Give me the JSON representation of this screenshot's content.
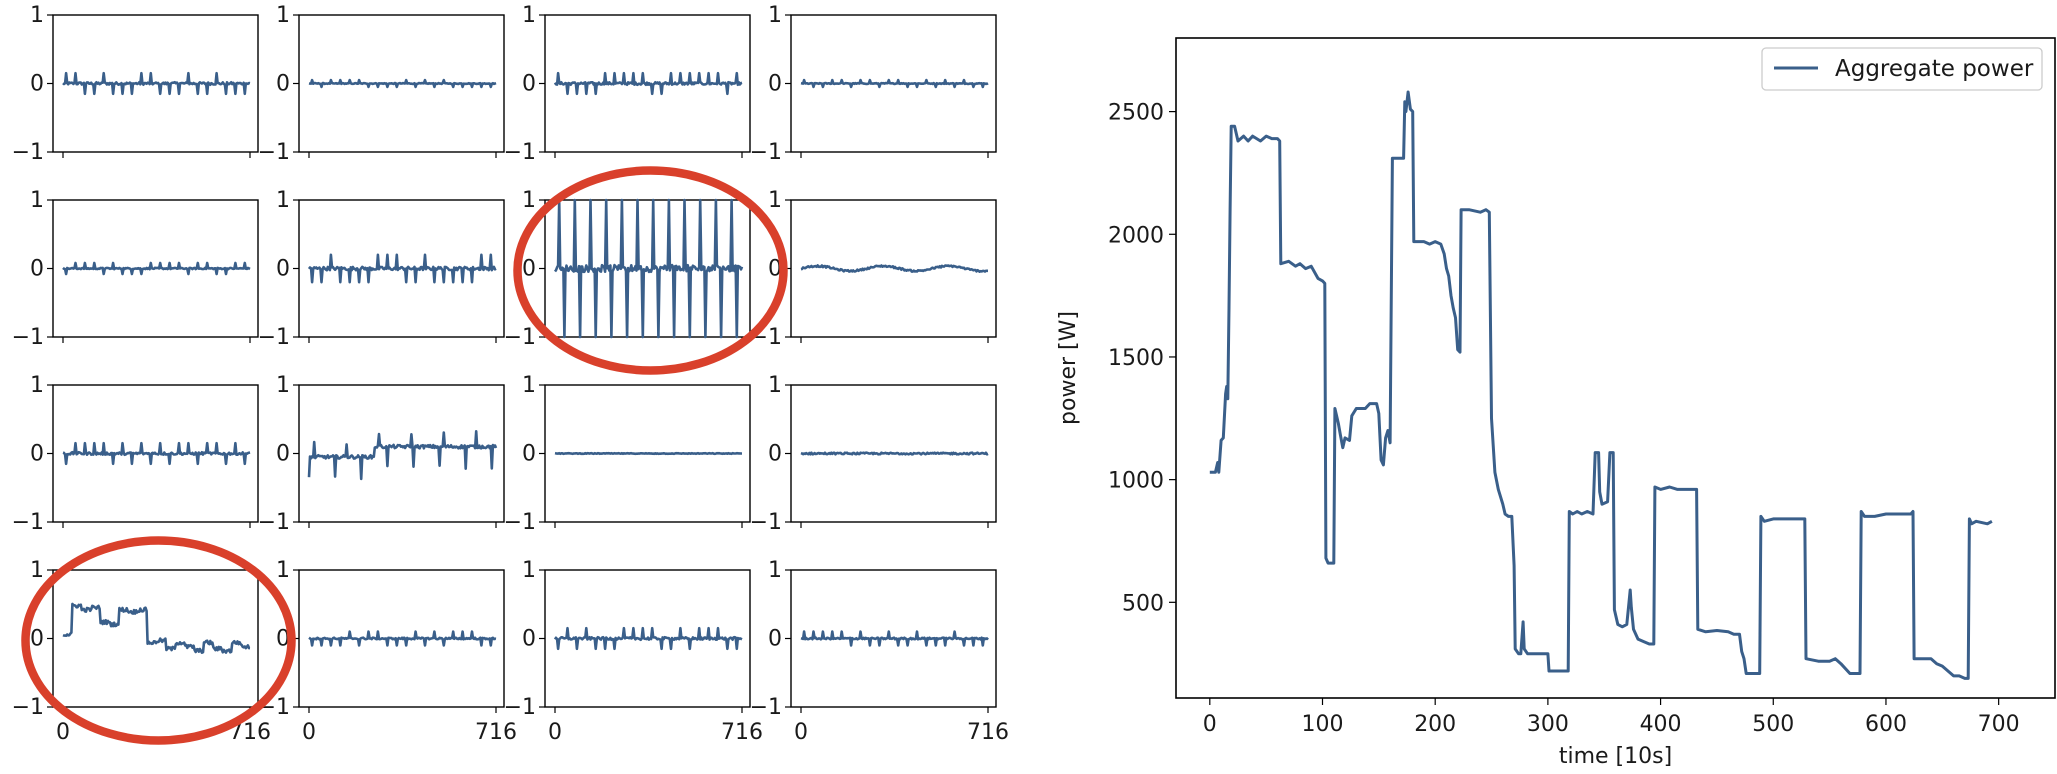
{
  "chart_data": [
    {
      "type": "line",
      "layout": "4x4 grid of small multiples",
      "ylim": [
        -1,
        1
      ],
      "xlim": [
        0,
        716
      ],
      "yticks": [
        "1",
        "0",
        "−1"
      ],
      "xticks": [
        "0",
        "716"
      ],
      "line_color": "#3a5f8a",
      "highlight_color": "#d9402b",
      "highlighted_panels": [
        [
          1,
          2
        ],
        [
          3,
          0
        ]
      ],
      "panels": [
        [
          {
            "kind": "spiky",
            "amp": 0.15
          },
          {
            "kind": "spiky",
            "amp": 0.05
          },
          {
            "kind": "spiky",
            "amp": 0.15
          },
          {
            "kind": "spiky",
            "amp": 0.05
          }
        ],
        [
          {
            "kind": "spiky",
            "amp": 0.08
          },
          {
            "kind": "spiky",
            "amp": 0.2
          },
          {
            "kind": "spiky-large",
            "amp": 1.0
          },
          {
            "kind": "wavy",
            "amp": 0.12
          }
        ],
        [
          {
            "kind": "spiky",
            "amp": 0.15
          },
          {
            "kind": "step-positive",
            "amp": 0.25
          },
          {
            "kind": "flat",
            "amp": 0.02
          },
          {
            "kind": "flat",
            "amp": 0.05
          }
        ],
        [
          {
            "kind": "step-trend",
            "amp": 0.6
          },
          {
            "kind": "spiky",
            "amp": 0.1
          },
          {
            "kind": "spiky",
            "amp": 0.15
          },
          {
            "kind": "spiky",
            "amp": 0.1
          }
        ]
      ]
    },
    {
      "type": "line",
      "xlabel": "time [10s]",
      "ylabel": "power [W]",
      "xlim": [
        -30,
        750
      ],
      "ylim": [
        110,
        2800
      ],
      "xticks": [
        0,
        100,
        200,
        300,
        400,
        500,
        600,
        700
      ],
      "yticks": [
        500,
        1000,
        1500,
        2000,
        2500
      ],
      "legend_position": "top-right",
      "series": [
        {
          "name": "Aggregate power",
          "color": "#3a5f8a",
          "points": [
            [
              0,
              1030
            ],
            [
              5,
              1030
            ],
            [
              7,
              1070
            ],
            [
              8,
              1030
            ],
            [
              10,
              1160
            ],
            [
              12,
              1170
            ],
            [
              14,
              1350
            ],
            [
              15,
              1380
            ],
            [
              16,
              1330
            ],
            [
              17,
              1700
            ],
            [
              18,
              2100
            ],
            [
              19,
              2440
            ],
            [
              22,
              2440
            ],
            [
              25,
              2380
            ],
            [
              30,
              2400
            ],
            [
              34,
              2380
            ],
            [
              38,
              2400
            ],
            [
              45,
              2380
            ],
            [
              50,
              2400
            ],
            [
              55,
              2390
            ],
            [
              60,
              2390
            ],
            [
              62,
              2380
            ],
            [
              63,
              1880
            ],
            [
              70,
              1890
            ],
            [
              76,
              1870
            ],
            [
              80,
              1880
            ],
            [
              85,
              1860
            ],
            [
              90,
              1870
            ],
            [
              96,
              1820
            ],
            [
              100,
              1810
            ],
            [
              102,
              1800
            ],
            [
              103,
              680
            ],
            [
              105,
              660
            ],
            [
              110,
              660
            ],
            [
              111,
              1290
            ],
            [
              114,
              1230
            ],
            [
              116,
              1180
            ],
            [
              118,
              1130
            ],
            [
              120,
              1170
            ],
            [
              124,
              1160
            ],
            [
              126,
              1260
            ],
            [
              130,
              1290
            ],
            [
              138,
              1290
            ],
            [
              142,
              1310
            ],
            [
              148,
              1310
            ],
            [
              150,
              1270
            ],
            [
              152,
              1080
            ],
            [
              154,
              1060
            ],
            [
              156,
              1170
            ],
            [
              158,
              1200
            ],
            [
              160,
              1150
            ],
            [
              162,
              2310
            ],
            [
              172,
              2310
            ],
            [
              173,
              2540
            ],
            [
              174,
              2500
            ],
            [
              176,
              2580
            ],
            [
              178,
              2510
            ],
            [
              180,
              2500
            ],
            [
              181,
              1970
            ],
            [
              190,
              1970
            ],
            [
              195,
              1960
            ],
            [
              200,
              1970
            ],
            [
              205,
              1960
            ],
            [
              208,
              1920
            ],
            [
              210,
              1860
            ],
            [
              212,
              1830
            ],
            [
              214,
              1750
            ],
            [
              216,
              1700
            ],
            [
              218,
              1660
            ],
            [
              220,
              1530
            ],
            [
              222,
              1520
            ],
            [
              223,
              2100
            ],
            [
              230,
              2100
            ],
            [
              240,
              2090
            ],
            [
              245,
              2100
            ],
            [
              248,
              2090
            ],
            [
              250,
              1250
            ],
            [
              253,
              1030
            ],
            [
              256,
              960
            ],
            [
              260,
              900
            ],
            [
              262,
              860
            ],
            [
              265,
              850
            ],
            [
              268,
              850
            ],
            [
              270,
              650
            ],
            [
              271,
              310
            ],
            [
              274,
              290
            ],
            [
              276,
              290
            ],
            [
              278,
              420
            ],
            [
              279,
              310
            ],
            [
              282,
              290
            ],
            [
              285,
              290
            ],
            [
              300,
              290
            ],
            [
              301,
              220
            ],
            [
              318,
              220
            ],
            [
              319,
              870
            ],
            [
              322,
              860
            ],
            [
              326,
              870
            ],
            [
              330,
              860
            ],
            [
              335,
              870
            ],
            [
              340,
              860
            ],
            [
              342,
              1110
            ],
            [
              345,
              1110
            ],
            [
              346,
              950
            ],
            [
              348,
              900
            ],
            [
              353,
              910
            ],
            [
              355,
              1110
            ],
            [
              358,
              1110
            ],
            [
              359,
              470
            ],
            [
              362,
              410
            ],
            [
              366,
              400
            ],
            [
              370,
              410
            ],
            [
              372,
              500
            ],
            [
              373,
              550
            ],
            [
              374,
              480
            ],
            [
              376,
              390
            ],
            [
              380,
              350
            ],
            [
              385,
              340
            ],
            [
              390,
              330
            ],
            [
              394,
              330
            ],
            [
              395,
              970
            ],
            [
              400,
              960
            ],
            [
              408,
              970
            ],
            [
              415,
              960
            ],
            [
              425,
              960
            ],
            [
              432,
              960
            ],
            [
              433,
              390
            ],
            [
              440,
              380
            ],
            [
              450,
              385
            ],
            [
              460,
              380
            ],
            [
              465,
              370
            ],
            [
              470,
              370
            ],
            [
              472,
              300
            ],
            [
              474,
              270
            ],
            [
              476,
              210
            ],
            [
              488,
              210
            ],
            [
              489,
              850
            ],
            [
              492,
              830
            ],
            [
              500,
              840
            ],
            [
              510,
              840
            ],
            [
              520,
              840
            ],
            [
              528,
              840
            ],
            [
              529,
              270
            ],
            [
              540,
              260
            ],
            [
              550,
              260
            ],
            [
              555,
              270
            ],
            [
              560,
              250
            ],
            [
              568,
              210
            ],
            [
              577,
              210
            ],
            [
              578,
              870
            ],
            [
              581,
              850
            ],
            [
              590,
              850
            ],
            [
              600,
              860
            ],
            [
              610,
              860
            ],
            [
              622,
              860
            ],
            [
              624,
              870
            ],
            [
              625,
              270
            ],
            [
              632,
              270
            ],
            [
              640,
              270
            ],
            [
              645,
              250
            ],
            [
              650,
              240
            ],
            [
              660,
              200
            ],
            [
              665,
              200
            ],
            [
              670,
              190
            ],
            [
              673,
              190
            ],
            [
              674,
              840
            ],
            [
              676,
              820
            ],
            [
              680,
              830
            ],
            [
              690,
              820
            ],
            [
              694,
              830
            ]
          ]
        }
      ]
    }
  ]
}
